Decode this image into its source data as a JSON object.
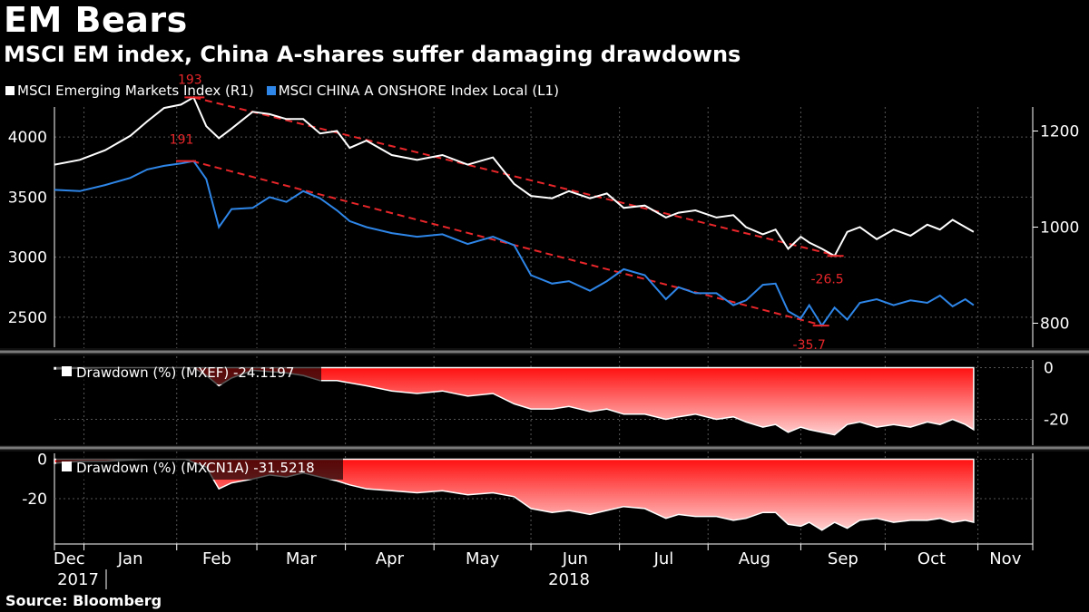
{
  "title": "EM Bears",
  "subtitle": "MSCI EM index, China A-shares suffer damaging drawdowns",
  "source": "Source: Bloomberg",
  "colors": {
    "background": "#000000",
    "em_line": "#ffffff",
    "china_line": "#2e86e8",
    "trend": "#e8262a",
    "drawdown_fill": "#ff1414",
    "grid": "#555555",
    "separator": "#7a7a7a"
  },
  "chart_data": [
    {
      "type": "line",
      "title": "MSCI EM index, China A-shares suffer damaging drawdowns",
      "x_axis": {
        "months": [
          "Dec",
          "Jan",
          "Feb",
          "Mar",
          "Apr",
          "May",
          "Jun",
          "Jul",
          "Aug",
          "Sep",
          "Oct",
          "Nov"
        ],
        "years": [
          "2017",
          "2018"
        ]
      },
      "left_axis": {
        "ticks": [
          "4000",
          "3500",
          "3000",
          "2500"
        ],
        "range": [
          2250,
          4250
        ]
      },
      "right_axis": {
        "ticks": [
          "1200",
          "1000",
          "800"
        ],
        "range": [
          750,
          1250
        ]
      },
      "series": [
        {
          "name": "MSCI Emerging Markets Index  (R1)",
          "axis": "right",
          "points": [
            [
              0,
              1130
            ],
            [
              6,
              1140
            ],
            [
              12,
              1160
            ],
            [
              18,
              1190
            ],
            [
              22,
              1220
            ],
            [
              26,
              1248
            ],
            [
              30,
              1255
            ],
            [
              33,
              1270
            ],
            [
              36,
              1210
            ],
            [
              39,
              1185
            ],
            [
              42,
              1205
            ],
            [
              47,
              1240
            ],
            [
              51,
              1235
            ],
            [
              55,
              1225
            ],
            [
              59,
              1225
            ],
            [
              63,
              1195
            ],
            [
              67,
              1200
            ],
            [
              70,
              1165
            ],
            [
              74,
              1180
            ],
            [
              80,
              1150
            ],
            [
              86,
              1140
            ],
            [
              92,
              1150
            ],
            [
              98,
              1130
            ],
            [
              104,
              1145
            ],
            [
              109,
              1090
            ],
            [
              113,
              1065
            ],
            [
              118,
              1060
            ],
            [
              122,
              1075
            ],
            [
              127,
              1060
            ],
            [
              131,
              1070
            ],
            [
              135,
              1040
            ],
            [
              140,
              1045
            ],
            [
              145,
              1020
            ],
            [
              148,
              1030
            ],
            [
              152,
              1035
            ],
            [
              157,
              1020
            ],
            [
              161,
              1025
            ],
            [
              164,
              1000
            ],
            [
              168,
              985
            ],
            [
              171,
              995
            ],
            [
              174,
              955
            ],
            [
              177,
              980
            ],
            [
              179,
              968
            ],
            [
              182,
              955
            ],
            [
              185,
              940
            ],
            [
              188,
              990
            ],
            [
              191,
              1000
            ],
            [
              195,
              975
            ],
            [
              199,
              995
            ],
            [
              203,
              982
            ],
            [
              207,
              1005
            ],
            [
              210,
              995
            ],
            [
              213,
              1015
            ],
            [
              216,
              1000
            ],
            [
              218,
              990
            ]
          ]
        },
        {
          "name": "MSCI CHINA A ONSHORE Index Local  (L1)",
          "axis": "left",
          "points": [
            [
              0,
              3560
            ],
            [
              6,
              3550
            ],
            [
              12,
              3600
            ],
            [
              18,
              3660
            ],
            [
              22,
              3730
            ],
            [
              26,
              3760
            ],
            [
              30,
              3780
            ],
            [
              33,
              3800
            ],
            [
              36,
              3650
            ],
            [
              39,
              3250
            ],
            [
              42,
              3400
            ],
            [
              47,
              3410
            ],
            [
              51,
              3500
            ],
            [
              55,
              3460
            ],
            [
              59,
              3550
            ],
            [
              63,
              3490
            ],
            [
              67,
              3390
            ],
            [
              70,
              3300
            ],
            [
              74,
              3250
            ],
            [
              80,
              3200
            ],
            [
              86,
              3170
            ],
            [
              92,
              3190
            ],
            [
              98,
              3110
            ],
            [
              104,
              3170
            ],
            [
              109,
              3100
            ],
            [
              113,
              2850
            ],
            [
              118,
              2780
            ],
            [
              122,
              2800
            ],
            [
              127,
              2720
            ],
            [
              131,
              2800
            ],
            [
              135,
              2900
            ],
            [
              140,
              2850
            ],
            [
              145,
              2650
            ],
            [
              148,
              2750
            ],
            [
              152,
              2700
            ],
            [
              157,
              2700
            ],
            [
              161,
              2600
            ],
            [
              164,
              2640
            ],
            [
              168,
              2770
            ],
            [
              171,
              2780
            ],
            [
              174,
              2550
            ],
            [
              177,
              2490
            ],
            [
              179,
              2600
            ],
            [
              182,
              2430
            ],
            [
              185,
              2580
            ],
            [
              188,
              2480
            ],
            [
              191,
              2620
            ],
            [
              195,
              2650
            ],
            [
              199,
              2600
            ],
            [
              203,
              2640
            ],
            [
              207,
              2620
            ],
            [
              210,
              2680
            ],
            [
              213,
              2590
            ],
            [
              216,
              2650
            ],
            [
              218,
              2600
            ]
          ]
        }
      ],
      "annotations": [
        {
          "label": "193",
          "series": "MSCI Emerging Markets Index  (R1)",
          "x": 33,
          "value": 1270
        },
        {
          "label": "191",
          "series": "MSCI CHINA A ONSHORE Index Local  (L1)",
          "x": 31,
          "value": 3800
        },
        {
          "label": "-26.5",
          "series": "MSCI Emerging Markets Index  (R1)",
          "x": 185,
          "value": 940
        },
        {
          "label": "-35.7",
          "series": "MSCI CHINA A ONSHORE Index Local  (L1)",
          "x": 182,
          "value": 2430
        }
      ]
    },
    {
      "type": "area",
      "legend": "Drawdown (%) (MXEF) -24.1197",
      "y_axis": {
        "ticks": [
          "0",
          "-20"
        ],
        "range": [
          -30,
          3
        ]
      },
      "points": [
        [
          0,
          -0.5
        ],
        [
          12,
          0
        ],
        [
          22,
          0
        ],
        [
          33,
          0
        ],
        [
          36,
          -3
        ],
        [
          39,
          -7
        ],
        [
          42,
          -4
        ],
        [
          47,
          -1
        ],
        [
          55,
          -2
        ],
        [
          59,
          -3
        ],
        [
          63,
          -5
        ],
        [
          67,
          -5
        ],
        [
          74,
          -7
        ],
        [
          80,
          -9
        ],
        [
          86,
          -10
        ],
        [
          92,
          -9
        ],
        [
          98,
          -11
        ],
        [
          104,
          -10
        ],
        [
          109,
          -14
        ],
        [
          113,
          -16
        ],
        [
          118,
          -16
        ],
        [
          122,
          -15
        ],
        [
          127,
          -17
        ],
        [
          131,
          -16
        ],
        [
          135,
          -18
        ],
        [
          140,
          -18
        ],
        [
          145,
          -20
        ],
        [
          148,
          -19
        ],
        [
          152,
          -18
        ],
        [
          157,
          -20
        ],
        [
          161,
          -19
        ],
        [
          164,
          -21
        ],
        [
          168,
          -23
        ],
        [
          171,
          -22
        ],
        [
          174,
          -25
        ],
        [
          177,
          -23
        ],
        [
          179,
          -24
        ],
        [
          182,
          -25
        ],
        [
          185,
          -26
        ],
        [
          188,
          -22
        ],
        [
          191,
          -21
        ],
        [
          195,
          -23
        ],
        [
          199,
          -22
        ],
        [
          203,
          -23
        ],
        [
          207,
          -21
        ],
        [
          210,
          -22
        ],
        [
          213,
          -20
        ],
        [
          216,
          -22
        ],
        [
          218,
          -24
        ]
      ]
    },
    {
      "type": "area",
      "legend": "Drawdown (%) (MXCN1A) -31.5218",
      "y_axis": {
        "ticks": [
          "0",
          "-20"
        ],
        "range": [
          -43,
          3
        ]
      },
      "points": [
        [
          0,
          -2
        ],
        [
          6,
          -1
        ],
        [
          12,
          -1
        ],
        [
          22,
          0
        ],
        [
          31,
          0
        ],
        [
          36,
          -4
        ],
        [
          39,
          -15
        ],
        [
          42,
          -12
        ],
        [
          47,
          -10
        ],
        [
          51,
          -8
        ],
        [
          55,
          -9
        ],
        [
          59,
          -7
        ],
        [
          63,
          -9
        ],
        [
          67,
          -11
        ],
        [
          70,
          -13
        ],
        [
          74,
          -15
        ],
        [
          80,
          -16
        ],
        [
          86,
          -17
        ],
        [
          92,
          -16
        ],
        [
          98,
          -18
        ],
        [
          104,
          -17
        ],
        [
          109,
          -19
        ],
        [
          113,
          -25
        ],
        [
          118,
          -27
        ],
        [
          122,
          -26
        ],
        [
          127,
          -28
        ],
        [
          131,
          -26
        ],
        [
          135,
          -24
        ],
        [
          140,
          -25
        ],
        [
          145,
          -30
        ],
        [
          148,
          -28
        ],
        [
          152,
          -29
        ],
        [
          157,
          -29
        ],
        [
          161,
          -31
        ],
        [
          164,
          -30
        ],
        [
          168,
          -27
        ],
        [
          171,
          -27
        ],
        [
          174,
          -33
        ],
        [
          177,
          -34
        ],
        [
          179,
          -32
        ],
        [
          182,
          -36
        ],
        [
          185,
          -32
        ],
        [
          188,
          -35
        ],
        [
          191,
          -31
        ],
        [
          195,
          -30
        ],
        [
          199,
          -32
        ],
        [
          203,
          -31
        ],
        [
          207,
          -31
        ],
        [
          210,
          -30
        ],
        [
          213,
          -32
        ],
        [
          216,
          -31
        ],
        [
          218,
          -32
        ]
      ]
    }
  ]
}
